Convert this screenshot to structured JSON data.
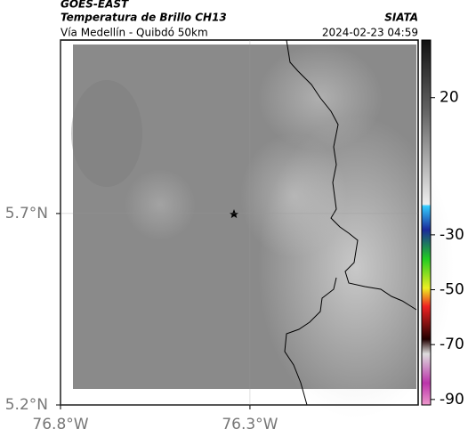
{
  "header": {
    "title": "GOES-EAST",
    "subtitle": "Temperatura de Brillo CH13",
    "place": "Vía Medellín - Quibdó 50km",
    "source": "SIATA",
    "datetime": "2024-02-23 04:59"
  },
  "map": {
    "xlim": [
      -76.8,
      -75.856
    ],
    "ylim": [
      5.2,
      6.153
    ],
    "xticks": [
      {
        "value": -76.8,
        "label": "76.8°W"
      },
      {
        "value": -76.3,
        "label": "76.3°W"
      }
    ],
    "yticks": [
      {
        "value": 5.2,
        "label": "5.2°N"
      },
      {
        "value": 5.7,
        "label": "5.7°N"
      }
    ]
  },
  "colorbar": {
    "lim": [
      -92,
      41
    ],
    "ticks": [
      20,
      -30,
      -50,
      -70,
      -90
    ]
  }
}
